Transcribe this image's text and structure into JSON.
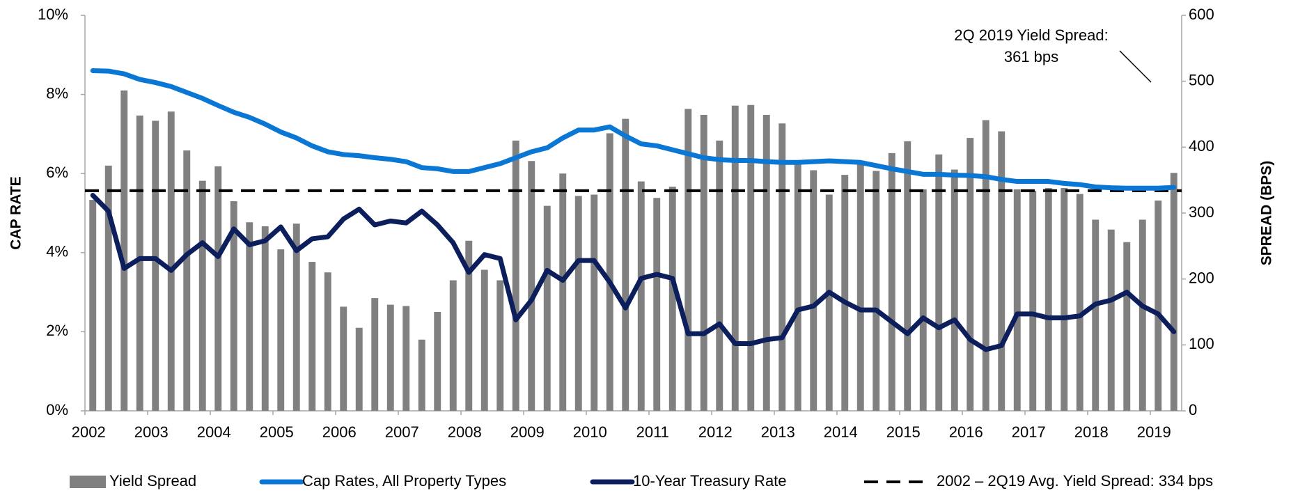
{
  "chart_data": {
    "type": "bar",
    "categories": [
      "2002",
      null,
      null,
      null,
      "2003",
      null,
      null,
      null,
      "2004",
      null,
      null,
      null,
      "2005",
      null,
      null,
      null,
      "2006",
      null,
      null,
      null,
      "2007",
      null,
      null,
      null,
      "2008",
      null,
      null,
      null,
      "2009",
      null,
      null,
      null,
      "2010",
      null,
      null,
      null,
      "2011",
      null,
      null,
      null,
      "2012",
      null,
      null,
      null,
      "2013",
      null,
      null,
      null,
      "2014",
      null,
      null,
      null,
      "2015",
      null,
      null,
      null,
      "2016",
      null,
      null,
      null,
      "2017",
      null,
      null,
      null,
      "2018",
      null,
      null,
      null,
      "2019",
      null
    ],
    "series": [
      {
        "name": "Yield Spread",
        "type": "bar",
        "axis": "y2",
        "color": "#808080",
        "values": [
          320,
          372,
          486,
          448,
          440,
          454,
          395,
          349,
          371,
          318,
          286,
          280,
          245,
          284,
          226,
          210,
          158,
          126,
          171,
          161,
          159,
          108,
          150,
          198,
          258,
          214,
          198,
          410,
          379,
          311,
          360,
          326,
          328,
          421,
          443,
          348,
          323,
          340,
          458,
          449,
          410,
          463,
          464,
          449,
          436,
          374,
          365,
          328,
          358,
          374,
          364,
          391,
          409,
          336,
          389,
          366,
          414,
          441,
          424,
          336,
          334,
          338,
          338,
          329,
          290,
          275,
          256,
          290,
          319,
          361
        ]
      },
      {
        "name": "Cap Rates, All Property Types",
        "type": "line",
        "color": "#0a77d5",
        "values": [
          8.6,
          8.59,
          8.52,
          8.38,
          8.3,
          8.2,
          8.05,
          7.9,
          7.72,
          7.55,
          7.42,
          7.25,
          7.05,
          6.9,
          6.7,
          6.55,
          6.48,
          6.45,
          6.4,
          6.36,
          6.3,
          6.15,
          6.12,
          6.05,
          6.05,
          6.15,
          6.25,
          6.4,
          6.55,
          6.65,
          6.9,
          7.1,
          7.1,
          7.18,
          6.95,
          6.75,
          6.7,
          6.6,
          6.5,
          6.4,
          6.35,
          6.33,
          6.33,
          6.3,
          6.28,
          6.28,
          6.3,
          6.32,
          6.3,
          6.28,
          6.2,
          6.12,
          6.05,
          5.98,
          5.98,
          5.96,
          5.95,
          5.92,
          5.85,
          5.8,
          5.8,
          5.8,
          5.75,
          5.72,
          5.66,
          5.64,
          5.63,
          5.63,
          5.63,
          5.65
        ]
      },
      {
        "name": "10-Year Treasury Rate",
        "type": "line",
        "color": "#0c1f5c",
        "values": [
          5.45,
          5.05,
          3.6,
          3.85,
          3.85,
          3.55,
          3.95,
          4.25,
          3.9,
          4.6,
          4.2,
          4.3,
          4.65,
          4.05,
          4.35,
          4.4,
          4.85,
          5.1,
          4.7,
          4.8,
          4.75,
          5.05,
          4.7,
          4.25,
          3.5,
          3.95,
          3.85,
          2.3,
          2.8,
          3.55,
          3.3,
          3.8,
          3.8,
          3.25,
          2.6,
          3.35,
          3.45,
          3.35,
          1.95,
          1.95,
          2.2,
          1.7,
          1.7,
          1.8,
          1.85,
          2.55,
          2.65,
          3.0,
          2.75,
          2.55,
          2.55,
          2.25,
          1.95,
          2.35,
          2.1,
          2.3,
          1.8,
          1.55,
          1.65,
          2.45,
          2.45,
          2.35,
          2.35,
          2.4,
          2.7,
          2.8,
          3.0,
          2.65,
          2.45,
          2.0
        ]
      }
    ],
    "reference_line": {
      "name": "2002 – 2Q19 Avg. Yield Spread: 334 bps",
      "value": 334,
      "axis": "y2",
      "color": "#000000"
    },
    "annotation": [
      "2Q 2019 Yield Spread:",
      "361 bps"
    ],
    "y_label": "CAP RATE",
    "y2_label": "SPREAD (BPS)",
    "ylim": [
      0,
      10
    ],
    "yticks": [
      {
        "value": 0,
        "label": "0%"
      },
      {
        "value": 2,
        "label": "2%"
      },
      {
        "value": 4,
        "label": "4%"
      },
      {
        "value": 6,
        "label": "6%"
      },
      {
        "value": 8,
        "label": "8%"
      },
      {
        "value": 10,
        "label": "10%"
      }
    ],
    "y2lim": [
      0,
      600
    ],
    "y2ticks": [
      0,
      100,
      200,
      300,
      400,
      500,
      600
    ],
    "legend": "bottom"
  }
}
